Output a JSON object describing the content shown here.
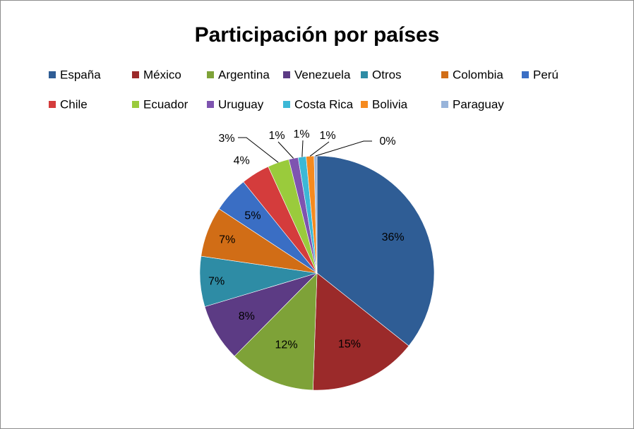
{
  "chart_data": {
    "type": "pie",
    "title": "Participación por países",
    "legend_position": "top",
    "series": [
      {
        "slices": [
          {
            "name": "España",
            "value": 36,
            "label": "36%",
            "color": "#2F5D95"
          },
          {
            "name": "México",
            "value": 15,
            "label": "15%",
            "color": "#9B2A2A"
          },
          {
            "name": "Argentina",
            "value": 12,
            "label": "12%",
            "color": "#7EA238"
          },
          {
            "name": "Venezuela",
            "value": 8,
            "label": "8%",
            "color": "#5C3B84"
          },
          {
            "name": "Otros",
            "value": 7,
            "label": "7%",
            "color": "#2E8CA5"
          },
          {
            "name": "Colombia",
            "value": 7,
            "label": "7%",
            "color": "#D16D16"
          },
          {
            "name": "Perú",
            "value": 5,
            "label": "5%",
            "color": "#3A6EC4"
          },
          {
            "name": "Chile",
            "value": 4,
            "label": "4%",
            "color": "#D43C3C"
          },
          {
            "name": "Ecuador",
            "value": 3,
            "label": "3%",
            "color": "#9ACB3C"
          },
          {
            "name": "Uruguay",
            "value": 1.3,
            "label": "1%",
            "color": "#7E54B0"
          },
          {
            "name": "Costa Rica",
            "value": 1.1,
            "label": "1%",
            "color": "#3CB8D6"
          },
          {
            "name": "Bolivia",
            "value": 1.1,
            "label": "1%",
            "color": "#F58A1F"
          },
          {
            "name": "Paraguay",
            "value": 0.4,
            "label": "0%",
            "color": "#98B4DA"
          }
        ]
      }
    ]
  }
}
